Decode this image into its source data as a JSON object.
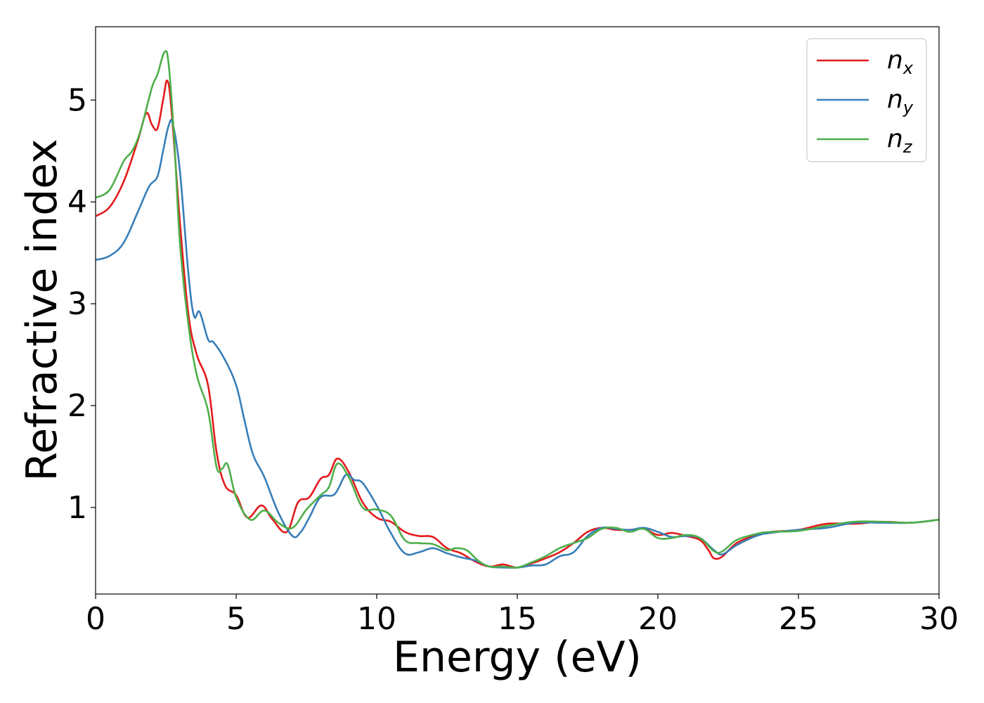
{
  "chart_data": {
    "type": "line",
    "xlabel": "Energy (eV)",
    "ylabel": "Refractive index",
    "xlim": [
      0,
      30
    ],
    "ylim": [
      0.15,
      5.72
    ],
    "xticks": [
      0,
      5,
      10,
      15,
      20,
      25,
      30
    ],
    "yticks": [
      1,
      2,
      3,
      4,
      5
    ],
    "grid": false,
    "legend_position": "top-right",
    "series": [
      {
        "name": "n_x",
        "label_main": "n",
        "label_sub": "x",
        "color": "#e41a1c",
        "x": [
          0,
          0.5,
          1.0,
          1.5,
          1.8,
          2.0,
          2.2,
          2.4,
          2.55,
          2.7,
          3.0,
          3.3,
          3.6,
          4.0,
          4.3,
          4.6,
          5.0,
          5.4,
          5.9,
          6.3,
          6.8,
          7.2,
          7.6,
          8.0,
          8.3,
          8.6,
          9.0,
          9.5,
          10.0,
          10.5,
          11.0,
          11.5,
          12.0,
          12.5,
          13.0,
          13.5,
          14.0,
          14.5,
          15.0,
          15.5,
          16.0,
          16.5,
          17.0,
          17.5,
          18.0,
          18.5,
          19.0,
          19.5,
          20.0,
          20.5,
          21.0,
          21.5,
          21.8,
          22.0,
          22.3,
          22.8,
          23.5,
          24.0,
          25.0,
          26.0,
          27.0,
          28.0,
          29.0,
          30.0
        ],
        "y": [
          3.86,
          3.95,
          4.2,
          4.6,
          4.87,
          4.76,
          4.72,
          5.0,
          5.19,
          4.9,
          3.8,
          2.9,
          2.5,
          2.2,
          1.55,
          1.22,
          1.12,
          0.9,
          1.02,
          0.88,
          0.76,
          1.05,
          1.1,
          1.28,
          1.32,
          1.48,
          1.35,
          1.05,
          0.9,
          0.86,
          0.76,
          0.72,
          0.71,
          0.6,
          0.55,
          0.47,
          0.42,
          0.44,
          0.41,
          0.45,
          0.5,
          0.56,
          0.65,
          0.76,
          0.8,
          0.78,
          0.78,
          0.79,
          0.73,
          0.75,
          0.72,
          0.68,
          0.58,
          0.5,
          0.52,
          0.65,
          0.73,
          0.76,
          0.78,
          0.84,
          0.84,
          0.86,
          0.85,
          0.88
        ]
      },
      {
        "name": "n_y",
        "label_main": "n",
        "label_sub": "y",
        "color": "#377eb8",
        "x": [
          0,
          0.5,
          1.0,
          1.5,
          1.9,
          2.2,
          2.4,
          2.6,
          2.75,
          3.0,
          3.3,
          3.5,
          3.7,
          4.0,
          4.2,
          4.6,
          5.0,
          5.3,
          5.6,
          6.0,
          6.5,
          7.0,
          7.3,
          7.6,
          8.0,
          8.5,
          8.9,
          9.2,
          9.5,
          10.0,
          10.5,
          11.0,
          11.5,
          12.0,
          12.5,
          13.0,
          13.5,
          14.0,
          14.5,
          15.0,
          15.5,
          16.0,
          16.5,
          17.0,
          17.5,
          18.0,
          18.5,
          19.0,
          19.5,
          20.0,
          20.5,
          21.0,
          21.5,
          22.0,
          22.3,
          22.8,
          23.5,
          24.0,
          25.0,
          26.0,
          27.0,
          28.0,
          29.0,
          30.0
        ],
        "y": [
          3.43,
          3.47,
          3.6,
          3.9,
          4.15,
          4.25,
          4.5,
          4.75,
          4.76,
          4.3,
          3.3,
          2.88,
          2.92,
          2.65,
          2.62,
          2.45,
          2.2,
          1.85,
          1.52,
          1.3,
          0.95,
          0.72,
          0.76,
          0.9,
          1.1,
          1.13,
          1.32,
          1.27,
          1.24,
          1.02,
          0.75,
          0.55,
          0.56,
          0.6,
          0.55,
          0.51,
          0.48,
          0.42,
          0.41,
          0.41,
          0.43,
          0.44,
          0.52,
          0.56,
          0.72,
          0.8,
          0.79,
          0.78,
          0.8,
          0.76,
          0.71,
          0.72,
          0.7,
          0.58,
          0.54,
          0.63,
          0.72,
          0.75,
          0.78,
          0.8,
          0.85,
          0.85,
          0.85,
          0.88
        ]
      },
      {
        "name": "n_z",
        "label_main": "n",
        "label_sub": "z",
        "color": "#4daf4a",
        "x": [
          0,
          0.5,
          1.0,
          1.3,
          1.6,
          2.0,
          2.2,
          2.45,
          2.6,
          2.8,
          3.0,
          3.3,
          3.6,
          4.0,
          4.3,
          4.5,
          4.7,
          5.0,
          5.5,
          6.0,
          6.5,
          7.0,
          7.5,
          8.0,
          8.3,
          8.6,
          9.0,
          9.5,
          10.0,
          10.5,
          11.0,
          11.5,
          12.0,
          12.5,
          12.8,
          13.2,
          13.6,
          14.0,
          14.5,
          15.0,
          15.5,
          16.0,
          16.5,
          17.0,
          17.5,
          18.0,
          18.5,
          19.0,
          19.5,
          20.0,
          20.5,
          21.0,
          21.5,
          22.0,
          22.3,
          22.8,
          23.5,
          24.0,
          25.0,
          26.0,
          27.0,
          28.0,
          29.0,
          30.0
        ],
        "y": [
          4.04,
          4.12,
          4.4,
          4.5,
          4.7,
          5.12,
          5.25,
          5.47,
          5.35,
          4.6,
          3.6,
          2.8,
          2.3,
          1.95,
          1.4,
          1.38,
          1.42,
          1.1,
          0.88,
          0.97,
          0.85,
          0.8,
          0.98,
          1.12,
          1.2,
          1.43,
          1.3,
          1.0,
          0.98,
          0.92,
          0.68,
          0.65,
          0.64,
          0.58,
          0.6,
          0.58,
          0.48,
          0.42,
          0.42,
          0.41,
          0.46,
          0.52,
          0.6,
          0.65,
          0.7,
          0.79,
          0.8,
          0.76,
          0.79,
          0.7,
          0.7,
          0.73,
          0.7,
          0.57,
          0.57,
          0.68,
          0.74,
          0.76,
          0.77,
          0.82,
          0.86,
          0.86,
          0.85,
          0.88
        ]
      }
    ]
  }
}
